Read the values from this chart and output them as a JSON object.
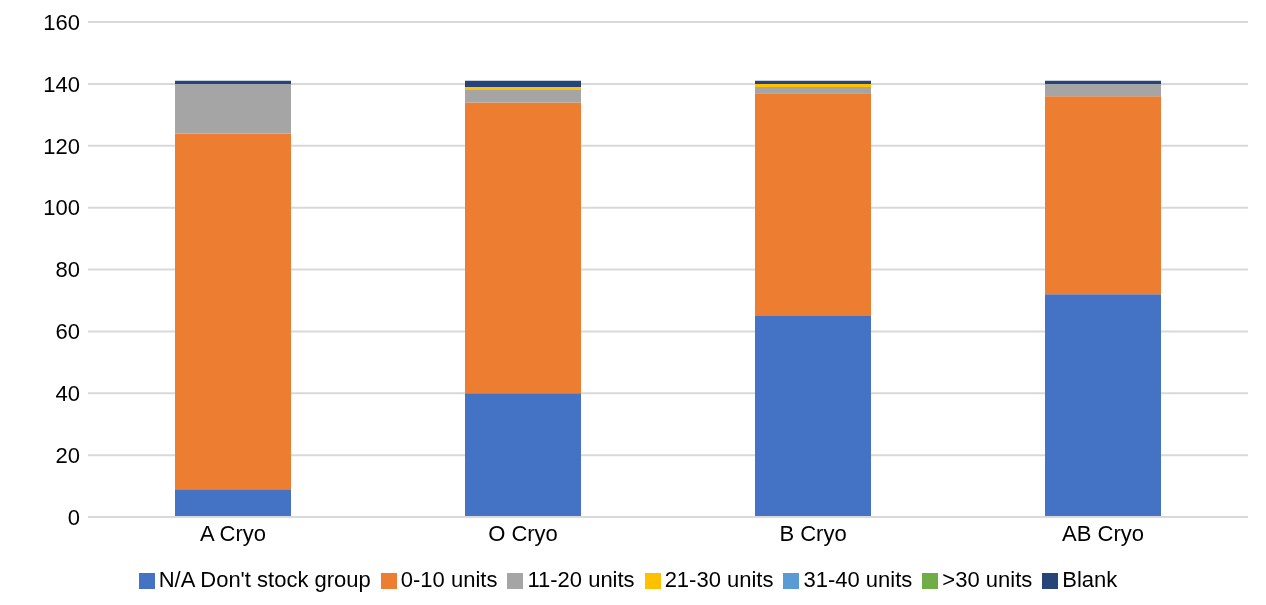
{
  "chart_data": {
    "type": "bar",
    "stacked": true,
    "categories": [
      "A Cryo",
      "O Cryo",
      "B Cryo",
      "AB Cryo"
    ],
    "series": [
      {
        "name": "N/A Don't stock group",
        "color": "#4472c4",
        "values": [
          9,
          40,
          65,
          72
        ]
      },
      {
        "name": "0-10 units",
        "color": "#ed7d31",
        "values": [
          115,
          94,
          72,
          64
        ]
      },
      {
        "name": "11-20 units",
        "color": "#a5a5a5",
        "values": [
          16,
          4,
          2,
          4
        ]
      },
      {
        "name": "21-30 units",
        "color": "#ffc000",
        "values": [
          0,
          1,
          1,
          0
        ]
      },
      {
        "name": "31-40 units",
        "color": "#5b9bd5",
        "values": [
          0,
          0,
          0,
          0
        ]
      },
      {
        "name": ">30 units",
        "color": "#70ad47",
        "values": [
          0,
          0,
          0,
          0
        ]
      },
      {
        "name": "Blank",
        "color": "#264478",
        "values": [
          1,
          2,
          1,
          1
        ]
      }
    ],
    "ylim": [
      0,
      160
    ],
    "yticks": [
      0,
      20,
      40,
      60,
      80,
      100,
      120,
      140,
      160
    ],
    "grid": "y",
    "legend": "bottom"
  }
}
